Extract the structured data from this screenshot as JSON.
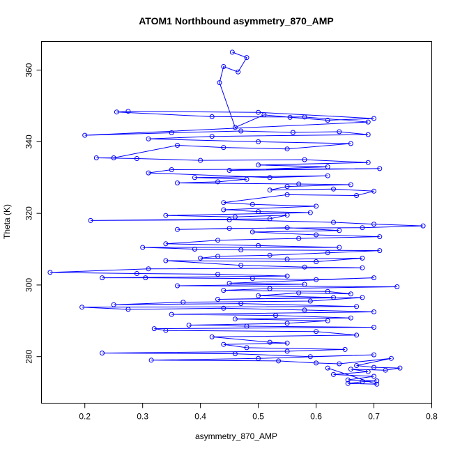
{
  "chart_data": {
    "type": "scatter",
    "title": "ATOM1 Northbound asymmetry_870_AMP",
    "xlabel": "asymmetry_870_AMP",
    "ylabel": "Theta (K)",
    "xlim": [
      0.125,
      0.8
    ],
    "ylim": [
      267,
      368
    ],
    "xticks": [
      0.2,
      0.3,
      0.4,
      0.5,
      0.6,
      0.7,
      0.8
    ],
    "yticks": [
      280,
      300,
      320,
      340,
      360
    ],
    "grid": false,
    "legend": "none",
    "color": "#0000ff",
    "marker": "open-circle",
    "connected": true,
    "series": [
      {
        "values": [
          [
            0.455,
            365.0
          ],
          [
            0.48,
            363.5
          ],
          [
            0.465,
            359.5
          ],
          [
            0.44,
            361.0
          ],
          [
            0.433,
            356.5
          ],
          [
            0.46,
            344.0
          ],
          [
            0.51,
            347.5
          ],
          [
            0.555,
            346.8
          ],
          [
            0.62,
            346.0
          ],
          [
            0.7,
            346.5
          ],
          [
            0.5,
            348.2
          ],
          [
            0.275,
            348.5
          ],
          [
            0.255,
            348.3
          ],
          [
            0.42,
            347.0
          ],
          [
            0.58,
            346.9
          ],
          [
            0.69,
            345.5
          ],
          [
            0.2,
            341.8
          ],
          [
            0.35,
            342.5
          ],
          [
            0.47,
            343.0
          ],
          [
            0.56,
            342.6
          ],
          [
            0.64,
            342.8
          ],
          [
            0.69,
            342.0
          ],
          [
            0.42,
            341.5
          ],
          [
            0.31,
            340.8
          ],
          [
            0.5,
            340.0
          ],
          [
            0.66,
            339.5
          ],
          [
            0.55,
            338.0
          ],
          [
            0.44,
            338.4
          ],
          [
            0.36,
            339.0
          ],
          [
            0.25,
            335.5
          ],
          [
            0.22,
            335.5
          ],
          [
            0.29,
            335.3
          ],
          [
            0.4,
            334.8
          ],
          [
            0.58,
            335.0
          ],
          [
            0.69,
            334.2
          ],
          [
            0.5,
            333.5
          ],
          [
            0.62,
            333.0
          ],
          [
            0.45,
            332.0
          ],
          [
            0.71,
            332.5
          ],
          [
            0.35,
            332.2
          ],
          [
            0.31,
            331.3
          ],
          [
            0.52,
            330.0
          ],
          [
            0.62,
            330.5
          ],
          [
            0.39,
            330.0
          ],
          [
            0.48,
            329.5
          ],
          [
            0.43,
            328.8
          ],
          [
            0.36,
            328.5
          ],
          [
            0.57,
            328.2
          ],
          [
            0.66,
            328.0
          ],
          [
            0.55,
            327.5
          ],
          [
            0.52,
            326.5
          ],
          [
            0.63,
            326.8
          ],
          [
            0.7,
            326.2
          ],
          [
            0.67,
            325.0
          ],
          [
            0.55,
            325.2
          ],
          [
            0.44,
            323.0
          ],
          [
            0.49,
            322.5
          ],
          [
            0.6,
            322.0
          ],
          [
            0.44,
            321.0
          ],
          [
            0.5,
            320.5
          ],
          [
            0.59,
            320.2
          ],
          [
            0.34,
            319.4
          ],
          [
            0.46,
            319.0
          ],
          [
            0.55,
            319.5
          ],
          [
            0.52,
            318.5
          ],
          [
            0.21,
            318.0
          ],
          [
            0.45,
            318.2
          ],
          [
            0.63,
            317.5
          ],
          [
            0.7,
            317.0
          ],
          [
            0.785,
            316.5
          ],
          [
            0.68,
            316.0
          ],
          [
            0.45,
            315.8
          ],
          [
            0.36,
            315.5
          ],
          [
            0.55,
            316.0
          ],
          [
            0.64,
            315.2
          ],
          [
            0.49,
            314.8
          ],
          [
            0.6,
            314.0
          ],
          [
            0.71,
            313.5
          ],
          [
            0.57,
            313.0
          ],
          [
            0.43,
            312.5
          ],
          [
            0.34,
            311.5
          ],
          [
            0.5,
            311.0
          ],
          [
            0.64,
            310.5
          ],
          [
            0.3,
            310.5
          ],
          [
            0.39,
            310.0
          ],
          [
            0.47,
            309.8
          ],
          [
            0.71,
            309.6
          ],
          [
            0.62,
            309.0
          ],
          [
            0.52,
            308.3
          ],
          [
            0.43,
            308.0
          ],
          [
            0.4,
            307.5
          ],
          [
            0.55,
            307.2
          ],
          [
            0.68,
            307.5
          ],
          [
            0.6,
            306.5
          ],
          [
            0.34,
            306.8
          ],
          [
            0.47,
            305.5
          ],
          [
            0.58,
            305.0
          ],
          [
            0.68,
            304.8
          ],
          [
            0.31,
            304.5
          ],
          [
            0.14,
            303.5
          ],
          [
            0.29,
            303.2
          ],
          [
            0.43,
            303.0
          ],
          [
            0.55,
            302.5
          ],
          [
            0.23,
            302.0
          ],
          [
            0.305,
            302.0
          ],
          [
            0.49,
            301.8
          ],
          [
            0.6,
            301.5
          ],
          [
            0.7,
            302.0
          ],
          [
            0.45,
            300.5
          ],
          [
            0.58,
            300.2
          ],
          [
            0.36,
            299.8
          ],
          [
            0.74,
            299.5
          ],
          [
            0.52,
            299.0
          ],
          [
            0.44,
            298.5
          ],
          [
            0.62,
            298.2
          ],
          [
            0.66,
            297.5
          ],
          [
            0.57,
            297.8
          ],
          [
            0.5,
            297.0
          ],
          [
            0.63,
            296.5
          ],
          [
            0.43,
            296.0
          ],
          [
            0.68,
            296.5
          ],
          [
            0.59,
            295.5
          ],
          [
            0.37,
            295.2
          ],
          [
            0.25,
            294.5
          ],
          [
            0.47,
            294.8
          ],
          [
            0.67,
            294.0
          ],
          [
            0.195,
            293.8
          ],
          [
            0.275,
            293.2
          ],
          [
            0.44,
            293.5
          ],
          [
            0.58,
            293.0
          ],
          [
            0.7,
            292.5
          ],
          [
            0.35,
            291.8
          ],
          [
            0.53,
            291.5
          ],
          [
            0.66,
            290.8
          ],
          [
            0.46,
            290.5
          ],
          [
            0.62,
            290.0
          ],
          [
            0.55,
            289.3
          ],
          [
            0.38,
            288.8
          ],
          [
            0.48,
            288.5
          ],
          [
            0.7,
            288.2
          ],
          [
            0.32,
            287.8
          ],
          [
            0.34,
            287.3
          ],
          [
            0.6,
            287.0
          ],
          [
            0.67,
            286.0
          ],
          [
            0.42,
            285.5
          ],
          [
            0.52,
            284.0
          ],
          [
            0.55,
            283.8
          ],
          [
            0.44,
            283.4
          ],
          [
            0.48,
            282.5
          ],
          [
            0.65,
            282.0
          ],
          [
            0.55,
            281.5
          ],
          [
            0.23,
            281.0
          ],
          [
            0.46,
            280.8
          ],
          [
            0.59,
            280.0
          ],
          [
            0.7,
            280.5
          ],
          [
            0.5,
            279.5
          ],
          [
            0.315,
            279.0
          ],
          [
            0.535,
            278.8
          ],
          [
            0.6,
            278.2
          ],
          [
            0.64,
            278.0
          ],
          [
            0.73,
            279.5
          ],
          [
            0.67,
            277.5
          ],
          [
            0.7,
            277.0
          ],
          [
            0.745,
            276.8
          ],
          [
            0.72,
            276.2
          ],
          [
            0.66,
            276.5
          ],
          [
            0.69,
            275.8
          ],
          [
            0.63,
            275.0
          ],
          [
            0.7,
            274.5
          ],
          [
            0.655,
            273.5
          ],
          [
            0.705,
            273.2
          ],
          [
            0.68,
            273.0
          ],
          [
            0.655,
            272.5
          ],
          [
            0.705,
            272.3
          ],
          [
            0.62,
            276.8
          ]
        ]
      }
    ]
  }
}
